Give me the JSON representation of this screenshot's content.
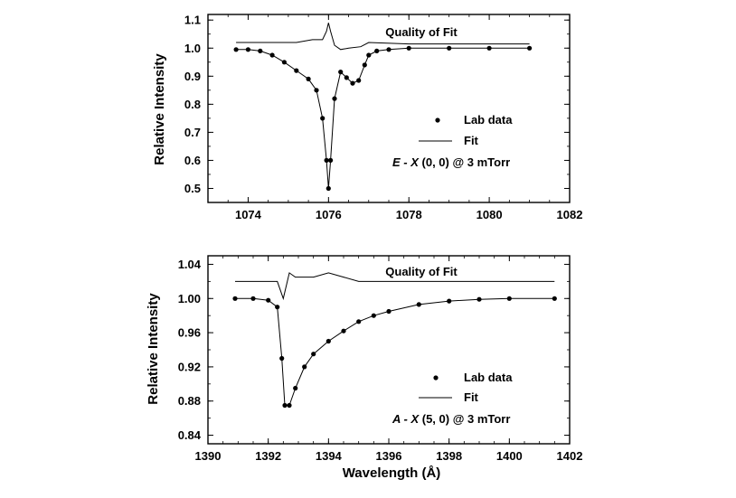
{
  "chart_data": [
    {
      "type": "line",
      "panel": "top",
      "x_domain": [
        1073,
        1082
      ],
      "ylim": [
        0.45,
        1.12
      ],
      "xticks": [
        "1074",
        "1076",
        "1078",
        "1080",
        "1082"
      ],
      "xtick_values": [
        1074,
        1076,
        1078,
        1080,
        1082
      ],
      "yticks": [
        "0.5",
        "0.6",
        "0.7",
        "0.8",
        "0.9",
        "1.0",
        "1.1"
      ],
      "ytick_values": [
        0.5,
        0.6,
        0.7,
        0.8,
        0.9,
        1.0,
        1.1
      ],
      "ylabel": "Relative Intensity",
      "xlabel": "",
      "series": [
        {
          "name": "Lab data",
          "style": "dots",
          "x": [
            1073.7,
            1074.0,
            1074.3,
            1074.6,
            1074.9,
            1075.2,
            1075.5,
            1075.7,
            1075.85,
            1075.95,
            1076.0,
            1076.05,
            1076.15,
            1076.3,
            1076.45,
            1076.6,
            1076.75,
            1076.9,
            1077.0,
            1077.2,
            1077.5,
            1078.0,
            1079.0,
            1080.0,
            1081.0
          ],
          "y": [
            0.995,
            0.995,
            0.99,
            0.975,
            0.95,
            0.92,
            0.89,
            0.85,
            0.75,
            0.6,
            0.5,
            0.6,
            0.82,
            0.915,
            0.895,
            0.875,
            0.885,
            0.94,
            0.975,
            0.99,
            0.995,
            1.0,
            1.0,
            1.0,
            1.0
          ]
        },
        {
          "name": "Fit",
          "style": "line",
          "x": [
            1073.7,
            1074.0,
            1074.3,
            1074.6,
            1074.9,
            1075.2,
            1075.5,
            1075.7,
            1075.85,
            1075.95,
            1076.0,
            1076.05,
            1076.15,
            1076.3,
            1076.45,
            1076.6,
            1076.75,
            1076.9,
            1077.0,
            1077.2,
            1077.5,
            1078.0,
            1079.0,
            1080.0,
            1081.0
          ],
          "y": [
            0.995,
            0.995,
            0.99,
            0.975,
            0.95,
            0.92,
            0.89,
            0.85,
            0.75,
            0.6,
            0.5,
            0.6,
            0.82,
            0.915,
            0.895,
            0.875,
            0.885,
            0.94,
            0.975,
            0.99,
            0.995,
            1.0,
            1.0,
            1.0,
            1.0
          ]
        },
        {
          "name": "Quality of Fit",
          "style": "line",
          "x": [
            1073.7,
            1074.5,
            1075.2,
            1075.6,
            1075.85,
            1075.95,
            1076.0,
            1076.05,
            1076.15,
            1076.3,
            1076.5,
            1076.8,
            1077.0,
            1078.0,
            1079.0,
            1080.0,
            1081.0
          ],
          "y": [
            1.02,
            1.02,
            1.02,
            1.03,
            1.03,
            1.06,
            1.09,
            1.06,
            1.01,
            0.995,
            1.0,
            1.005,
            1.02,
            1.015,
            1.015,
            1.015,
            1.015
          ]
        }
      ],
      "legend": {
        "dots_label": "Lab data",
        "line_label": "Fit",
        "placement": "right"
      },
      "annotations": {
        "quality": "Quality of Fit",
        "band_prefix": "E - X",
        "band_suffix": " (0, 0) @ 3 mTorr"
      }
    },
    {
      "type": "line",
      "panel": "bottom",
      "x_domain": [
        1390,
        1402
      ],
      "ylim": [
        0.83,
        1.05
      ],
      "xticks": [
        "1390",
        "1392",
        "1394",
        "1396",
        "1398",
        "1400",
        "1402"
      ],
      "xtick_values": [
        1390,
        1392,
        1394,
        1396,
        1398,
        1400,
        1402
      ],
      "yticks": [
        "0.84",
        "0.88",
        "0.92",
        "0.96",
        "1.00",
        "1.04"
      ],
      "ytick_values": [
        0.84,
        0.88,
        0.92,
        0.96,
        1.0,
        1.04
      ],
      "ylabel": "Relative Intensity",
      "xlabel": "Wavelength (Å)",
      "series": [
        {
          "name": "Lab data",
          "style": "dots",
          "x": [
            1390.9,
            1391.5,
            1392.0,
            1392.3,
            1392.45,
            1392.55,
            1392.7,
            1392.9,
            1393.2,
            1393.5,
            1394.0,
            1394.5,
            1395.0,
            1395.5,
            1396.0,
            1397.0,
            1398.0,
            1399.0,
            1400.0,
            1401.5
          ],
          "y": [
            1.0,
            1.0,
            0.998,
            0.99,
            0.93,
            0.875,
            0.875,
            0.895,
            0.92,
            0.935,
            0.95,
            0.962,
            0.973,
            0.98,
            0.985,
            0.993,
            0.997,
            0.999,
            1.0,
            1.0
          ]
        },
        {
          "name": "Fit",
          "style": "line",
          "x": [
            1390.9,
            1391.5,
            1392.0,
            1392.3,
            1392.45,
            1392.55,
            1392.7,
            1392.9,
            1393.2,
            1393.5,
            1394.0,
            1394.5,
            1395.0,
            1395.5,
            1396.0,
            1397.0,
            1398.0,
            1399.0,
            1400.0,
            1401.5
          ],
          "y": [
            1.0,
            1.0,
            0.998,
            0.99,
            0.93,
            0.875,
            0.875,
            0.895,
            0.92,
            0.935,
            0.95,
            0.962,
            0.973,
            0.98,
            0.985,
            0.993,
            0.997,
            0.999,
            1.0,
            1.0
          ]
        },
        {
          "name": "Quality of Fit",
          "style": "line",
          "x": [
            1390.9,
            1392.0,
            1392.3,
            1392.5,
            1392.7,
            1392.9,
            1393.5,
            1394.0,
            1394.5,
            1395.0,
            1396.0,
            1398.0,
            1400.0,
            1401.5
          ],
          "y": [
            1.02,
            1.02,
            1.02,
            1.0,
            1.03,
            1.025,
            1.025,
            1.03,
            1.025,
            1.02,
            1.02,
            1.02,
            1.02,
            1.02
          ]
        }
      ],
      "legend": {
        "dots_label": "Lab data",
        "line_label": "Fit",
        "placement": "right"
      },
      "annotations": {
        "quality": "Quality of Fit",
        "band_prefix": "A - X",
        "band_suffix": " (5, 0) @ 3 mTorr"
      }
    }
  ]
}
